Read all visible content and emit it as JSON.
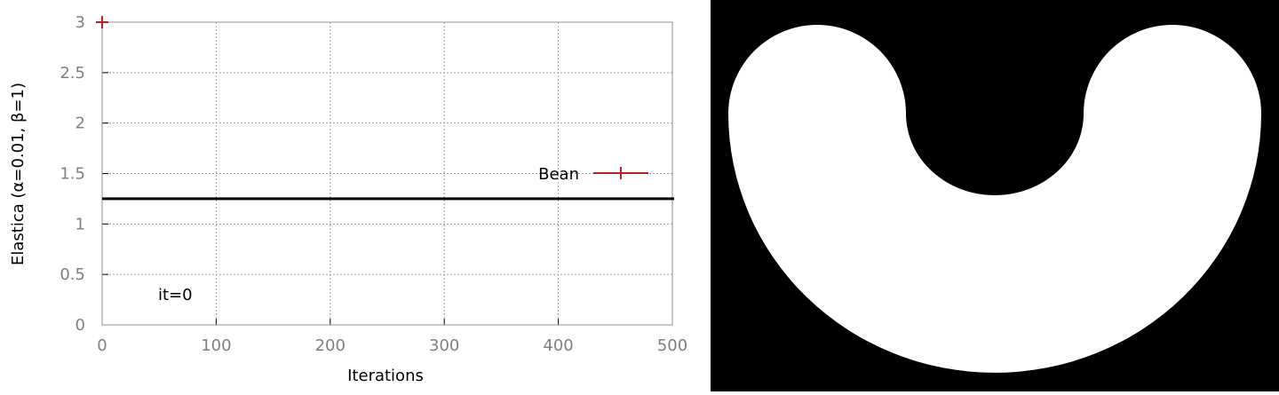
{
  "chart_data": {
    "type": "scatter",
    "xlabel": "Iterations",
    "ylabel": "Elastica (α=0.01, β=1)",
    "xlim": [
      0,
      500
    ],
    "ylim": [
      0,
      3
    ],
    "xticks": [
      "0",
      "100",
      "200",
      "300",
      "400",
      "500"
    ],
    "yticks": [
      "0",
      "0.5",
      "1",
      "1.5",
      "2",
      "2.5",
      "3"
    ],
    "grid": true,
    "legend_position": "right",
    "series": [
      {
        "name": "Bean",
        "color": "#b22222",
        "marker": "plus",
        "x": [
          0
        ],
        "y": [
          3
        ]
      }
    ],
    "reference_line": {
      "y": 1.25,
      "color": "#000000"
    },
    "annotation": "it=0"
  },
  "shape_panel": {
    "background": "#000000",
    "shape_color": "#ffffff",
    "icon": "bean-shape"
  }
}
